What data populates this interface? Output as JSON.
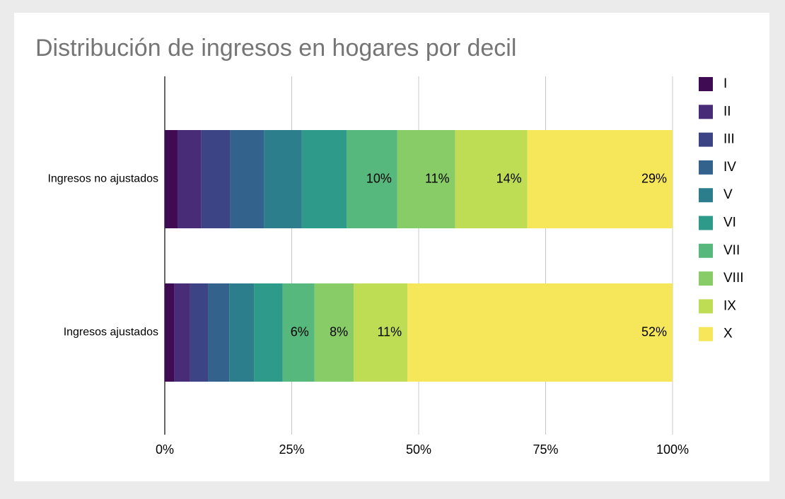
{
  "chart_data": {
    "type": "stacked-bar-horizontal",
    "title": "Distribución de ingresos en hogares por decil",
    "categories": [
      "Ingresos no ajustados",
      "Ingresos ajustados"
    ],
    "series": [
      {
        "name": "I",
        "color": "#3f0b53",
        "values": [
          2.6,
          1.9
        ],
        "value_labels": [
          null,
          null
        ]
      },
      {
        "name": "II",
        "color": "#482c78",
        "values": [
          4.6,
          3.1
        ],
        "value_labels": [
          null,
          null
        ]
      },
      {
        "name": "III",
        "color": "#3d4485",
        "values": [
          5.7,
          3.5
        ],
        "value_labels": [
          null,
          null
        ]
      },
      {
        "name": "IV",
        "color": "#33628d",
        "values": [
          6.7,
          4.2
        ],
        "value_labels": [
          null,
          null
        ]
      },
      {
        "name": "V",
        "color": "#2d7e8d",
        "values": [
          7.4,
          4.9
        ],
        "value_labels": [
          null,
          null
        ]
      },
      {
        "name": "VI",
        "color": "#2e9a8a",
        "values": [
          8.8,
          5.6
        ],
        "value_labels": [
          null,
          null
        ]
      },
      {
        "name": "VII",
        "color": "#56b87c",
        "values": [
          10.0,
          6.3
        ],
        "value_labels": [
          "10%",
          "6%"
        ]
      },
      {
        "name": "VIII",
        "color": "#87cc66",
        "values": [
          11.4,
          7.7
        ],
        "value_labels": [
          "11%",
          "8%"
        ]
      },
      {
        "name": "IX",
        "color": "#bedd55",
        "values": [
          14.2,
          10.6
        ],
        "value_labels": [
          "14%",
          "11%"
        ]
      },
      {
        "name": "X",
        "color": "#f6e65a",
        "values": [
          28.6,
          52.2
        ],
        "value_labels": [
          "29%",
          "52%"
        ]
      }
    ],
    "xlim": [
      0,
      100
    ],
    "xticks": [
      {
        "value": 0,
        "label": "0%"
      },
      {
        "value": 25,
        "label": "25%"
      },
      {
        "value": 50,
        "label": "50%"
      },
      {
        "value": 75,
        "label": "75%"
      },
      {
        "value": 100,
        "label": "100%"
      }
    ],
    "grid": true,
    "legend": "right"
  }
}
